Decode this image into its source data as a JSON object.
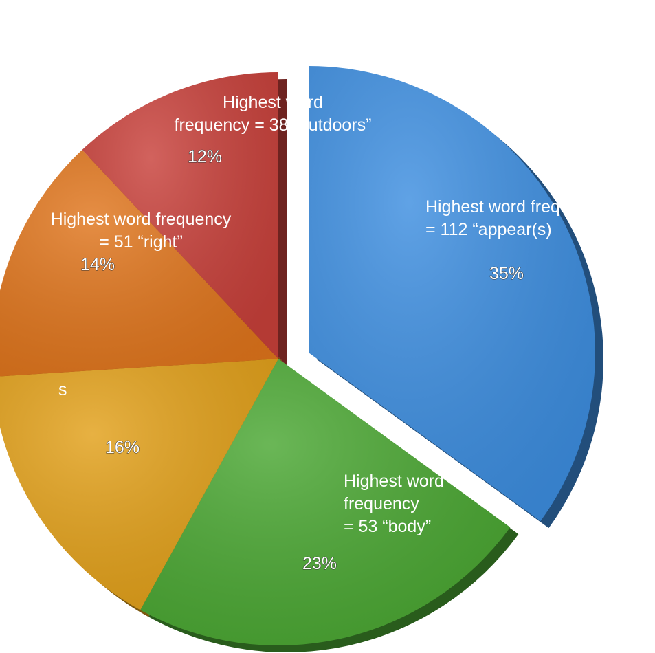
{
  "chart_data": {
    "type": "pie",
    "exploded_slice": 0,
    "slices": [
      {
        "value": 35,
        "percent_label": "35%",
        "label_lines": [
          "Highest word frequen",
          "= 112 “appear(s)"
        ],
        "color": "#3d8ee0"
      },
      {
        "value": 23,
        "percent_label": "23%",
        "label_lines": [
          "Highest word",
          "frequency",
          "= 53 “body”"
        ],
        "color": "#4aa732"
      },
      {
        "value": 16,
        "percent_label": "16%",
        "label_lines": [
          "s"
        ],
        "color": "#e2a019"
      },
      {
        "value": 14,
        "percent_label": "14%",
        "label_lines": [
          "Highest word frequency",
          "= 51 “right”"
        ],
        "color": "#e0751c"
      },
      {
        "value": 12,
        "percent_label": "12%",
        "label_lines": [
          "Highest word",
          "frequency = 38 “outdoors”"
        ],
        "color": "#c8403a"
      }
    ]
  }
}
